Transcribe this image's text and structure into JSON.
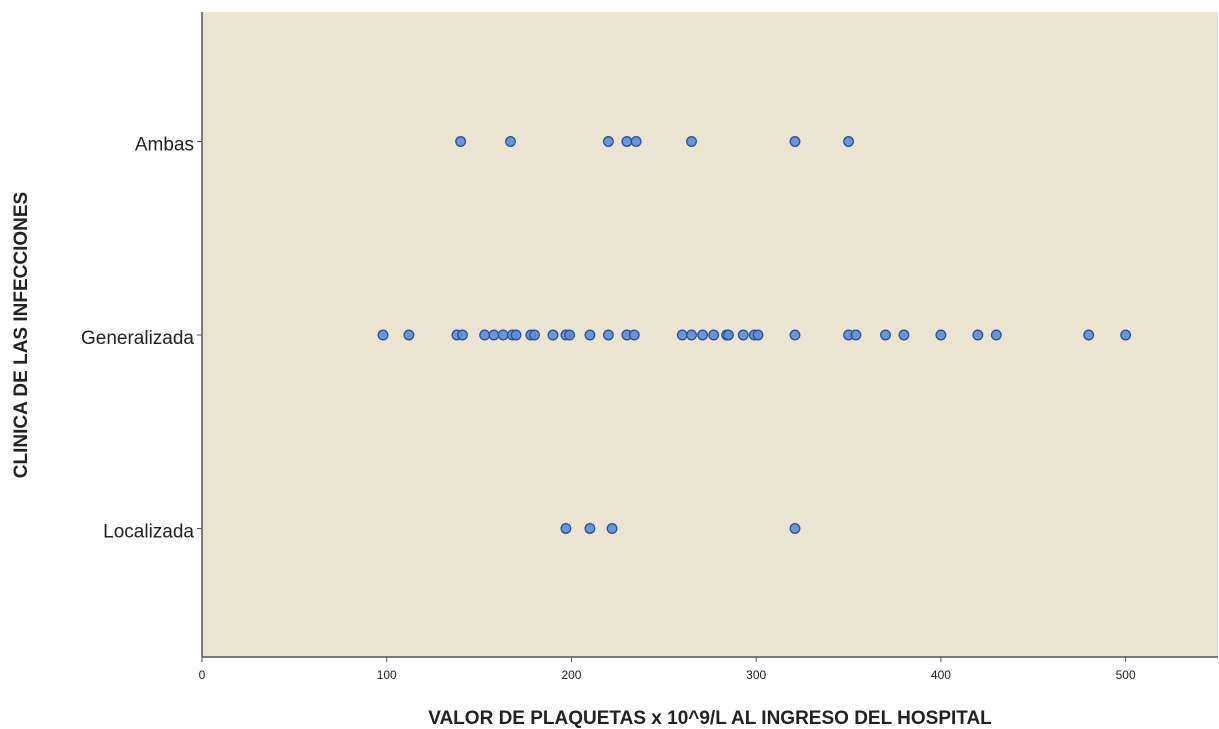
{
  "chart_data": {
    "type": "scatter",
    "x_label": "VALOR DE PLAQUETAS x 10^9/L AL INGRESO DEL HOSPITAL",
    "y_label": "CLINICA DE LAS INFECCIONES",
    "categories": [
      "Ambas",
      "Generalizada",
      "Localizada"
    ],
    "values": [
      [
        140,
        167,
        220,
        230,
        235,
        265,
        321,
        350
      ],
      [
        98,
        112,
        138,
        141,
        153,
        158,
        163,
        168,
        170,
        178,
        180,
        190,
        197,
        199,
        210,
        220,
        230,
        234,
        260,
        265,
        271,
        277,
        284,
        285,
        293,
        299,
        301,
        321,
        350,
        354,
        370,
        380,
        400,
        420,
        430,
        480,
        500
      ],
      [
        197,
        210,
        222,
        321
      ]
    ],
    "color": "#5b8ddb",
    "edge_color": "#2b519c",
    "background": "#ebe4d0",
    "xlim": [
      0,
      550
    ],
    "xticks": [
      0,
      100,
      200,
      300,
      400,
      500
    ]
  }
}
